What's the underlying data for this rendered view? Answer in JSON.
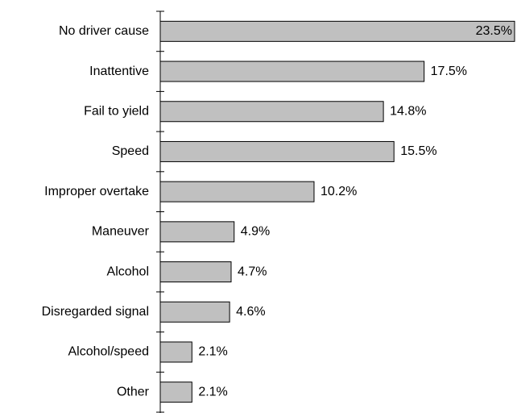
{
  "chart_data": {
    "type": "bar",
    "orientation": "horizontal",
    "categories": [
      "No driver cause",
      "Inattentive",
      "Fail to yield",
      "Speed",
      "Improper overtake",
      "Maneuver",
      "Alcohol",
      "Disregarded signal",
      "Alcohol/speed",
      "Other"
    ],
    "values": [
      23.5,
      17.5,
      14.8,
      15.5,
      10.2,
      4.9,
      4.7,
      4.6,
      2.1,
      2.1
    ],
    "value_labels": [
      "23.5%",
      "17.5%",
      "14.8%",
      "15.5%",
      "10.2%",
      "4.9%",
      "4.7%",
      "4.6%",
      "2.1%",
      "2.1%"
    ],
    "color": "#c0c0c0"
  }
}
